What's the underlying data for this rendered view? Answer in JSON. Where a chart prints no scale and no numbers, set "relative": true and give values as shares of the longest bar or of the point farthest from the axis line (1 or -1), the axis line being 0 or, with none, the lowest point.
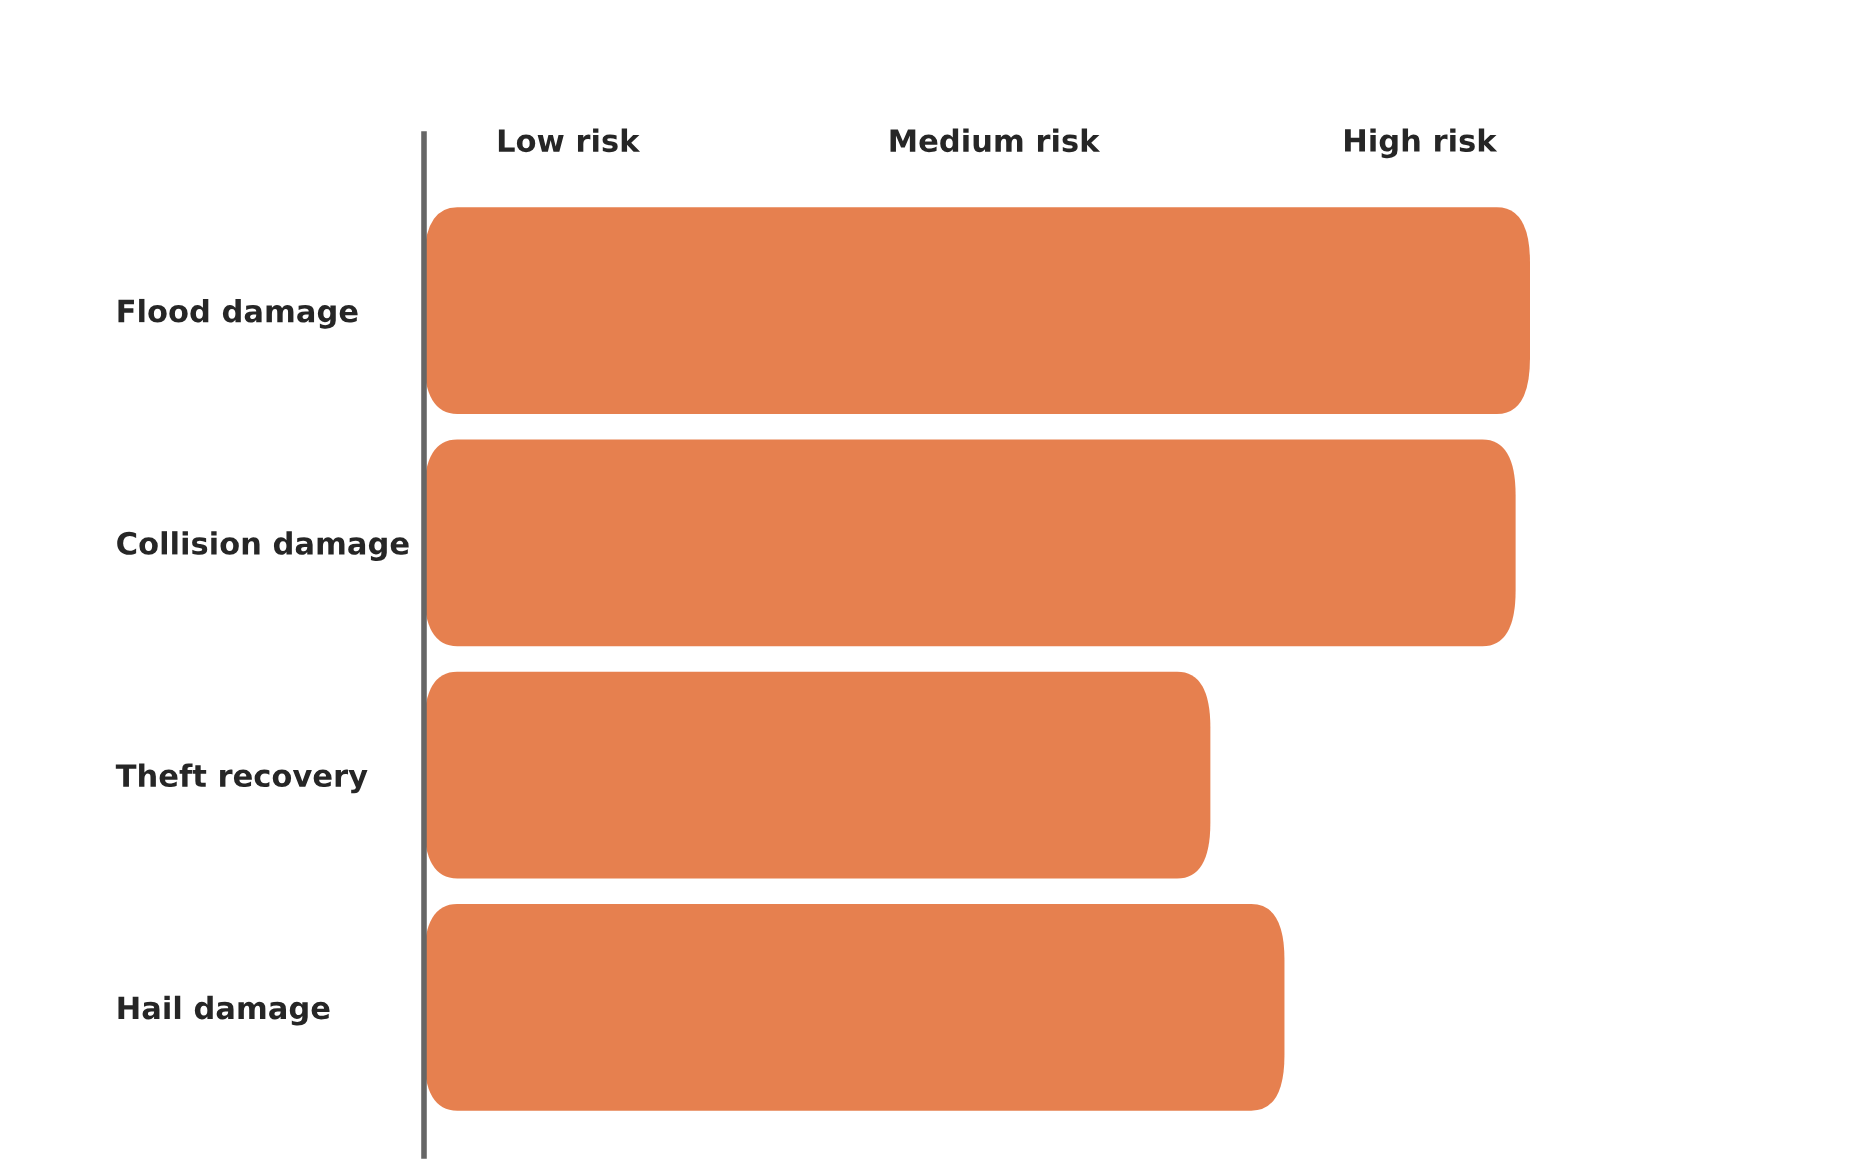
{
  "chart_data": {
    "type": "bar",
    "orientation": "horizontal",
    "relative": true,
    "categories": [
      "Flood damage",
      "Collision damage",
      "Theft recovery",
      "Hail damage"
    ],
    "values": [
      1,
      0.987,
      0.711,
      0.778
    ],
    "color": "#e6804f",
    "annotations": [
      "Low risk",
      "Medium risk",
      "High risk"
    ],
    "grid": false,
    "legend": false
  }
}
